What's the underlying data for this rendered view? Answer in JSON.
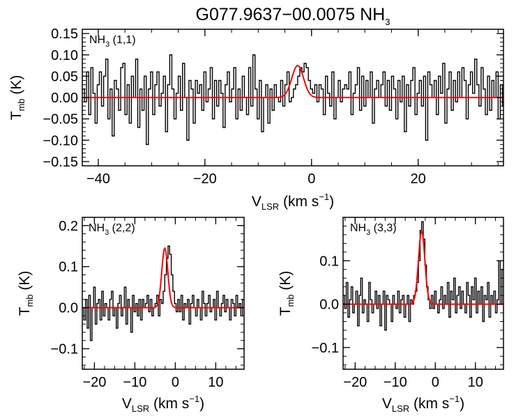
{
  "title": {
    "main": "G077.9637−00.0075 NH",
    "sub": "3"
  },
  "chart_data": [
    {
      "type": "line",
      "label": {
        "main": "NH",
        "sub": "3",
        "rest": " (1,1)"
      },
      "xlabel": {
        "main": "V",
        "sub": "LSR",
        "rest": " (km s",
        "sup": "−1",
        "end": ")"
      },
      "ylabel": {
        "main": "T",
        "sub": "mb",
        "rest": " (K)"
      },
      "xlim": [
        -43,
        36
      ],
      "ylim": [
        -0.16,
        0.16
      ],
      "xticks": [
        -40,
        -20,
        0,
        20
      ],
      "xtick_labels": [
        "−40",
        "−20",
        "0",
        "20"
      ],
      "yticks": [
        -0.15,
        -0.1,
        -0.05,
        0.0,
        0.05,
        0.1,
        0.15
      ],
      "ytick_labels": [
        "−0.15",
        "−0.10",
        "−0.05",
        "0.00",
        "0.05",
        "0.10",
        "0.15"
      ],
      "spectrum": {
        "x_start": -43,
        "x_step": 0.4,
        "y": [
          0.02,
          -0.01,
          0.06,
          -0.04,
          0.07,
          0.01,
          -0.06,
          0.03,
          0.06,
          -0.02,
          0.05,
          0.09,
          -0.05,
          0.02,
          -0.09,
          0.04,
          0.02,
          -0.03,
          0.07,
          0.08,
          -0.04,
          0.03,
          -0.06,
          0.05,
          0.0,
          0.09,
          -0.07,
          0.02,
          -0.03,
          0.05,
          -0.11,
          0.02,
          0.06,
          -0.04,
          0.03,
          0.06,
          -0.02,
          0.01,
          0.05,
          -0.08,
          0.03,
          0.1,
          0.02,
          -0.05,
          0.01,
          0.05,
          -0.03,
          0.08,
          0.0,
          -0.1,
          0.04,
          0.02,
          -0.06,
          0.04,
          0.01,
          0.03,
          -0.03,
          0.06,
          -0.01,
          0.02,
          0.07,
          -0.05,
          0.04,
          -0.02,
          0.04,
          0.01,
          -0.07,
          0.03,
          0.06,
          -0.01,
          0.02,
          0.07,
          -0.05,
          0.02,
          -0.03,
          0.05,
          0.0,
          -0.04,
          0.07,
          -0.02,
          0.1,
          0.02,
          -0.05,
          0.04,
          -0.08,
          0.0,
          0.03,
          -0.06,
          0.02,
          -0.03,
          0.03,
          0.0,
          -0.01,
          0.04,
          -0.02,
          0.03,
          0.06,
          -0.01,
          0.0,
          0.02,
          0.03,
          0.05,
          0.07,
          0.06,
          0.08,
          0.07,
          0.04,
          0.02,
          0.01,
          0.03,
          -0.01,
          0.03,
          0.02,
          -0.04,
          0.05,
          0.01,
          -0.02,
          0.06,
          -0.05,
          0.0,
          0.04,
          -0.01,
          0.02,
          0.03,
          0.02,
          0.06,
          -0.04,
          0.01,
          0.03,
          0.07,
          -0.03,
          0.05,
          -0.02,
          0.04,
          0.0,
          0.06,
          -0.06,
          0.02,
          0.04,
          0.0,
          0.03,
          0.06,
          -0.02,
          0.04,
          -0.03,
          0.05,
          0.02,
          -0.05,
          0.04,
          -0.01,
          0.05,
          -0.08,
          0.03,
          -0.02,
          0.04,
          0.07,
          -0.04,
          0.01,
          0.04,
          -0.02,
          0.05,
          -0.1,
          0.06,
          0.03,
          0.0,
          0.04,
          -0.04,
          0.05,
          0.01,
          0.08,
          -0.06,
          0.02,
          0.06,
          -0.03,
          0.04,
          -0.01,
          0.06,
          0.0,
          0.07,
          0.04,
          -0.05,
          0.03,
          0.06,
          0.01,
          0.09,
          0.03,
          -0.02,
          0.07,
          0.02,
          -0.04,
          0.05,
          -0.03,
          0.04,
          0.0,
          0.06,
          -0.05,
          0.03,
          -0.02,
          0.04,
          -0.06,
          0.01,
          -0.04
        ]
      },
      "fit": {
        "amplitude": 0.075,
        "center": -2.6,
        "sigma": 1.1
      }
    },
    {
      "type": "line",
      "label": {
        "main": "NH",
        "sub": "3",
        "rest": " (2,2)"
      },
      "xlabel": {
        "main": "V",
        "sub": "LSR",
        "rest": " (km s",
        "sup": "−1",
        "end": ")"
      },
      "ylabel": {
        "main": "T",
        "sub": "mb",
        "rest": " (K)"
      },
      "xlim": [
        -23,
        17
      ],
      "ylim": [
        -0.15,
        0.22
      ],
      "xticks": [
        -20,
        -10,
        0,
        10
      ],
      "xtick_labels": [
        "−20",
        "−10",
        "0",
        "10"
      ],
      "yticks": [
        -0.1,
        0.0,
        0.1,
        0.2
      ],
      "ytick_labels": [
        "−0.1",
        "0.0",
        "0.1",
        "0.2"
      ],
      "spectrum": {
        "x_start": -23,
        "x_step": 0.4,
        "y": [
          0.0,
          -0.03,
          0.02,
          -0.05,
          0.03,
          -0.08,
          0.0,
          0.05,
          -0.04,
          0.01,
          0.02,
          -0.03,
          0.04,
          -0.02,
          0.01,
          0.0,
          -0.03,
          0.02,
          0.04,
          -0.02,
          0.0,
          -0.05,
          0.01,
          0.03,
          -0.02,
          0.0,
          0.05,
          -0.04,
          0.02,
          0.0,
          -0.06,
          0.03,
          -0.01,
          0.01,
          -0.02,
          0.02,
          -0.03,
          0.02,
          0.0,
          0.01,
          0.03,
          -0.01,
          0.02,
          -0.02,
          0.0,
          0.01,
          0.03,
          -0.02,
          0.02,
          0.01,
          0.04,
          0.08,
          0.12,
          0.15,
          0.13,
          0.08,
          0.04,
          0.01,
          -0.01,
          0.02,
          -0.01,
          0.03,
          -0.03,
          0.01,
          0.0,
          0.02,
          -0.04,
          0.01,
          0.03,
          0.0,
          -0.02,
          0.02,
          0.0,
          -0.03,
          0.04,
          0.01,
          -0.02,
          0.01,
          0.03,
          -0.01,
          0.0,
          0.02,
          -0.03,
          0.04,
          0.0,
          -0.02,
          0.01,
          0.03,
          -0.01,
          0.02,
          0.0,
          -0.03,
          0.02,
          0.01,
          -0.02,
          0.03,
          0.0,
          0.01,
          -0.02,
          0.02
        ]
      },
      "fit": {
        "amplitude": 0.145,
        "center": -2.6,
        "sigma": 0.75
      }
    },
    {
      "type": "line",
      "label": {
        "main": "NH",
        "sub": "3",
        "rest": " (3,3)"
      },
      "xlabel": {
        "main": "V",
        "sub": "LSR",
        "rest": " (km s",
        "sup": "−1",
        "end": ")"
      },
      "ylabel": {
        "main": "T",
        "sub": "mb",
        "rest": " (K)"
      },
      "xlim": [
        -23,
        17
      ],
      "ylim": [
        -0.15,
        0.2
      ],
      "xticks": [
        -20,
        -10,
        0,
        10
      ],
      "xtick_labels": [
        "−20",
        "−10",
        "0",
        "10"
      ],
      "yticks": [
        -0.1,
        0.0,
        0.1
      ],
      "ytick_labels": [
        "−0.1",
        "0.0",
        "0.1"
      ],
      "spectrum": {
        "x_start": -23,
        "x_step": 0.4,
        "y": [
          0.02,
          -0.01,
          0.05,
          -0.03,
          0.01,
          0.04,
          -0.02,
          0.0,
          0.03,
          -0.05,
          0.02,
          0.06,
          -0.02,
          0.01,
          0.0,
          -0.04,
          0.05,
          0.01,
          -0.02,
          0.0,
          0.03,
          -0.01,
          0.02,
          -0.05,
          0.0,
          0.03,
          -0.06,
          0.02,
          0.01,
          0.0,
          -0.04,
          0.02,
          0.0,
          -0.01,
          0.03,
          -0.02,
          0.01,
          0.02,
          -0.03,
          0.0,
          0.02,
          -0.04,
          0.01,
          0.0,
          0.02,
          0.03,
          0.05,
          0.1,
          0.17,
          0.19,
          0.15,
          0.09,
          0.04,
          0.01,
          -0.01,
          0.02,
          -0.01,
          0.03,
          0.0,
          -0.02,
          0.01,
          0.04,
          -0.01,
          0.02,
          0.0,
          0.05,
          -0.03,
          0.03,
          0.01,
          0.06,
          -0.02,
          0.02,
          0.04,
          -0.01,
          0.03,
          0.0,
          -0.02,
          0.05,
          0.02,
          -0.03,
          0.04,
          0.01,
          0.06,
          -0.02,
          0.03,
          0.0,
          0.04,
          -0.04,
          0.02,
          0.01,
          0.05,
          -0.03,
          0.02,
          0.0,
          0.03,
          -0.02,
          0.01,
          0.1,
          0.0,
          0.08
        ]
      },
      "fit": {
        "amplitude": 0.168,
        "center": -3.4,
        "sigma": 0.8
      }
    }
  ]
}
